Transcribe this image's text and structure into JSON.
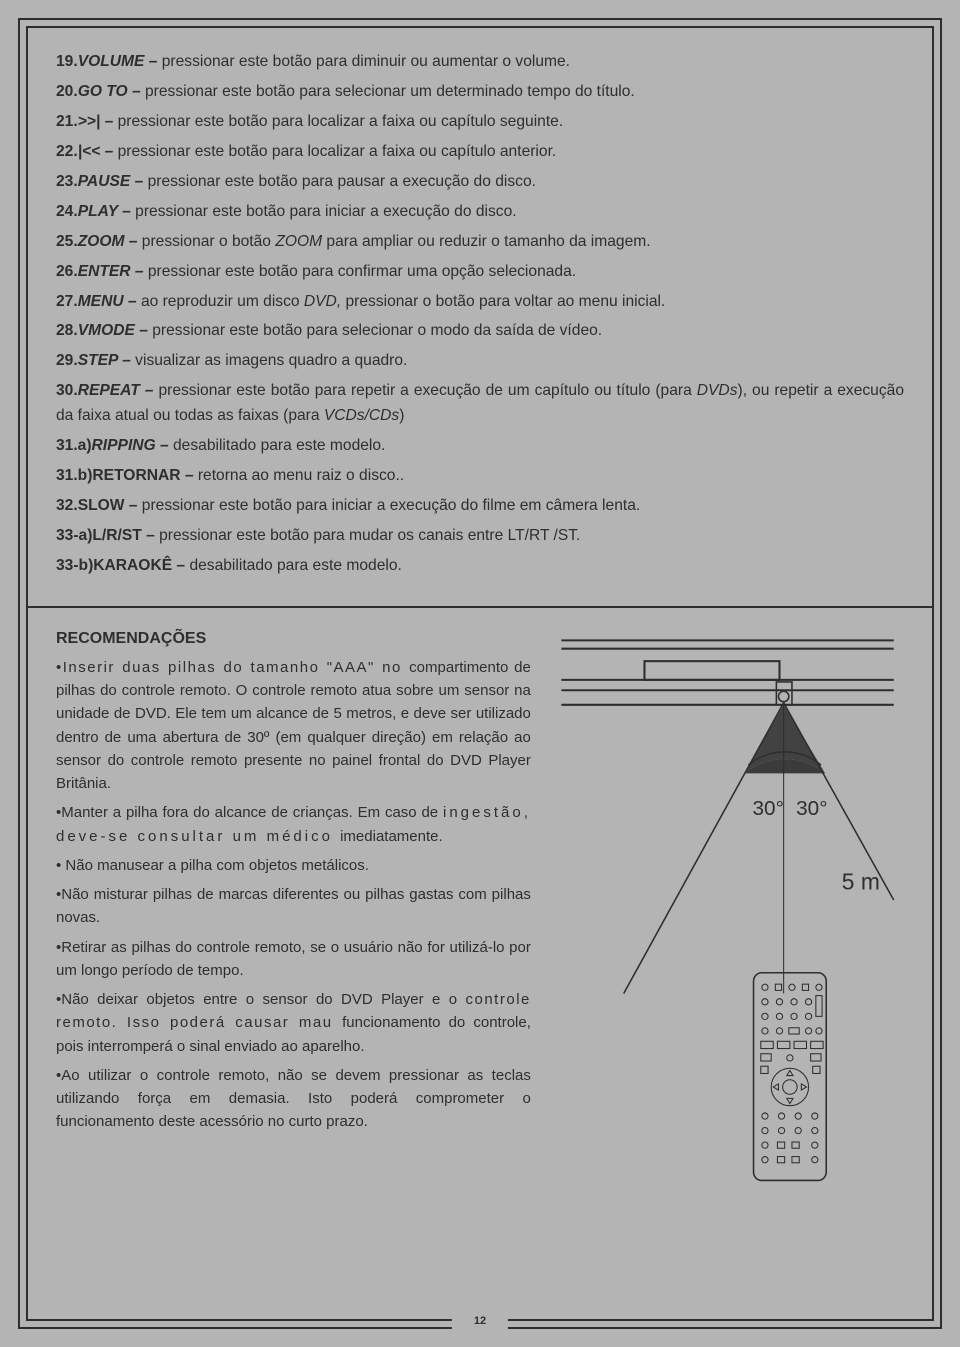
{
  "items": [
    {
      "num": "19.",
      "label": "VOLUME",
      "desc": "pressionar este botão para diminuir ou aumentar o volume."
    },
    {
      "num": "20.",
      "label": "GO TO",
      "desc": "pressionar este botão para selecionar um determinado tempo do título."
    },
    {
      "num": "21.",
      "label": ">>|",
      "desc": "pressionar este botão para localizar a faixa ou capítulo seguinte."
    },
    {
      "num": "22.",
      "label": "|<<",
      "desc": "pressionar este botão para localizar a faixa ou capítulo anterior."
    },
    {
      "num": "23.",
      "label": "PAUSE",
      "desc": "pressionar este botão para pausar a execução do disco."
    },
    {
      "num": "24.",
      "label": "PLAY",
      "desc": "pressionar este botão para iniciar a execução do disco."
    },
    {
      "num": "25.",
      "label": "ZOOM",
      "pre": "pressionar o botão ",
      "italic": "ZOOM",
      "post": " para ampliar ou reduzir o tamanho da imagem."
    },
    {
      "num": "26.",
      "label": "ENTER",
      "desc": "pressionar este botão para confirmar uma opção selecionada."
    },
    {
      "num": "27.",
      "label": "MENU",
      "pre": "ao reproduzir um disco ",
      "italic": "DVD,",
      "post": " pressionar o botão para voltar ao menu inicial."
    },
    {
      "num": "28.",
      "label": "VMODE",
      "desc": "pressionar este botão para selecionar o modo da saída de vídeo."
    },
    {
      "num": "29.",
      "label": "STEP",
      "desc": "visualizar as imagens quadro a quadro."
    },
    {
      "num": "30.",
      "label": "REPEAT",
      "pre": "pressionar este botão para repetir a execução de um capítulo ou título (para ",
      "italic": "DVDs",
      "mid": "), ou repetir a execução da faixa atual ou todas as faixas (para ",
      "italic2": "VCDs/CDs",
      "post": ")"
    },
    {
      "num": "31.a)",
      "label": "RIPPING",
      "desc": "desabilitado para este modelo."
    },
    {
      "num": "31.b)",
      "label": "RETORNAR",
      "plain": true,
      "desc": "retorna ao menu raiz o disco.."
    },
    {
      "num": "32.",
      "label": "SLOW",
      "plain": true,
      "desc": "pressionar este botão para iniciar a execução do filme em câmera lenta."
    },
    {
      "num": "33-a)",
      "label": "L/R/ST",
      "plain": true,
      "desc": "pressionar este botão para mudar os canais entre LT/RT /ST."
    },
    {
      "num": "33-b)",
      "label": "KARAOKÊ",
      "plain": true,
      "desc": "desabilitado para este modelo."
    }
  ],
  "reco_title": "RECOMENDAÇÕES",
  "reco_bullets": [
    {
      "spaced": "•Inserir duas pilhas do tamanho \"AAA\" no ",
      "rest": "compartimento de pilhas do controle remoto. O controle remoto atua sobre um sensor na unidade de DVD. Ele tem um alcance de 5 metros, e deve ser utilizado dentro de uma abertura de 30º (em qualquer direção) em relação ao sensor do controle remoto presente no painel frontal do DVD Player Britânia."
    },
    {
      "t": "•Manter a pilha fora do alcance de crianças. Em caso de ",
      "spaced2": "ingestão, deve-se consultar um médico ",
      "rest2": "imediatamente."
    },
    {
      "t": "• Não manusear a pilha com objetos metálicos."
    },
    {
      "t": "•Não misturar pilhas de marcas diferentes ou pilhas gastas com pilhas novas."
    },
    {
      "t": "•Retirar as pilhas do controle remoto, se o usuário não for utilizá-lo por um longo período de tempo."
    },
    {
      "t": "•Não deixar objetos entre o sensor do DVD Player e o ",
      "spaced3": "controle remoto. Isso poderá causar mau ",
      "rest2": "funcionamento do controle, pois interromperá o sinal enviado ao aparelho."
    },
    {
      "t": "•Ao utilizar o controle remoto, não se devem pressionar as teclas utilizando força em demasia. Isto poderá comprometer o funcionamento deste acessório no curto prazo."
    }
  ],
  "diagram": {
    "angle_left": "30°",
    "angle_right": "30°",
    "distance": "5 m"
  },
  "page_number": "12"
}
